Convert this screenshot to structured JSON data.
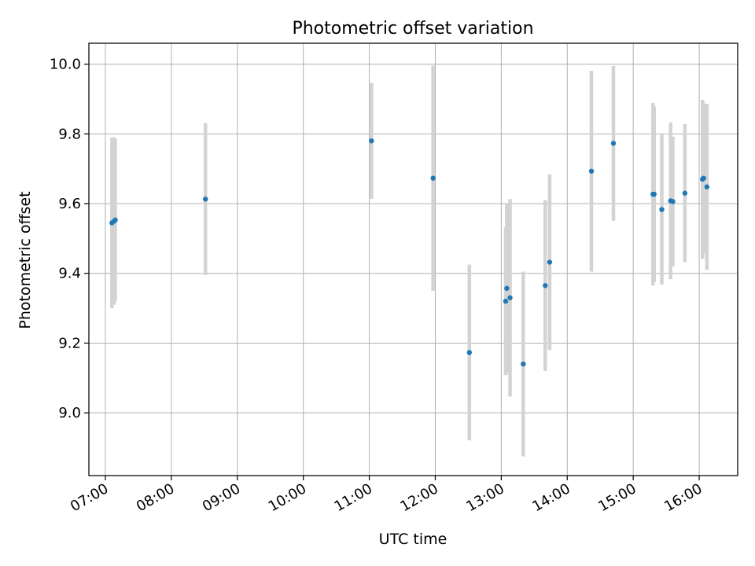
{
  "chart_data": {
    "type": "scatter",
    "title": "Photometric offset variation",
    "xlabel": "UTC time",
    "ylabel": "Photometric offset",
    "x_ticks": [
      "07:00",
      "08:00",
      "09:00",
      "10:00",
      "11:00",
      "12:00",
      "13:00",
      "14:00",
      "15:00",
      "16:00"
    ],
    "y_ticks": [
      9.0,
      9.2,
      9.4,
      9.6,
      9.8,
      10.0
    ],
    "xlim": [
      "06:45",
      "16:35"
    ],
    "ylim": [
      8.82,
      10.06
    ],
    "grid": true,
    "colors": {
      "points": "#1f77b4",
      "errorbars": "#d3d3d3",
      "grid": "#b0b0b0"
    },
    "points": [
      {
        "x": "07:06",
        "y": 9.545,
        "err": 0.245
      },
      {
        "x": "07:08",
        "y": 9.55,
        "err": 0.24
      },
      {
        "x": "07:09",
        "y": 9.553,
        "err": 0.232
      },
      {
        "x": "08:31",
        "y": 9.613,
        "err": 0.218
      },
      {
        "x": "11:02",
        "y": 9.78,
        "err": 0.166
      },
      {
        "x": "11:58",
        "y": 9.673,
        "err": 0.323
      },
      {
        "x": "12:31",
        "y": 9.173,
        "err": 0.252
      },
      {
        "x": "13:04",
        "y": 9.32,
        "err": 0.212
      },
      {
        "x": "13:05",
        "y": 9.357,
        "err": 0.243
      },
      {
        "x": "13:08",
        "y": 9.33,
        "err": 0.283
      },
      {
        "x": "13:20",
        "y": 9.14,
        "err": 0.265
      },
      {
        "x": "13:40",
        "y": 9.365,
        "err": 0.245
      },
      {
        "x": "13:44",
        "y": 9.432,
        "err": 0.252
      },
      {
        "x": "14:22",
        "y": 9.693,
        "err": 0.288
      },
      {
        "x": "14:42",
        "y": 9.773,
        "err": 0.222
      },
      {
        "x": "15:18",
        "y": 9.627,
        "err": 0.262
      },
      {
        "x": "15:19",
        "y": 9.627,
        "err": 0.252
      },
      {
        "x": "15:26",
        "y": 9.583,
        "err": 0.215
      },
      {
        "x": "15:34",
        "y": 9.608,
        "err": 0.225
      },
      {
        "x": "15:36",
        "y": 9.606,
        "err": 0.186
      },
      {
        "x": "15:47",
        "y": 9.63,
        "err": 0.198
      },
      {
        "x": "16:03",
        "y": 9.67,
        "err": 0.228
      },
      {
        "x": "16:04",
        "y": 9.673,
        "err": 0.215
      },
      {
        "x": "16:07",
        "y": 9.648,
        "err": 0.238
      }
    ]
  }
}
